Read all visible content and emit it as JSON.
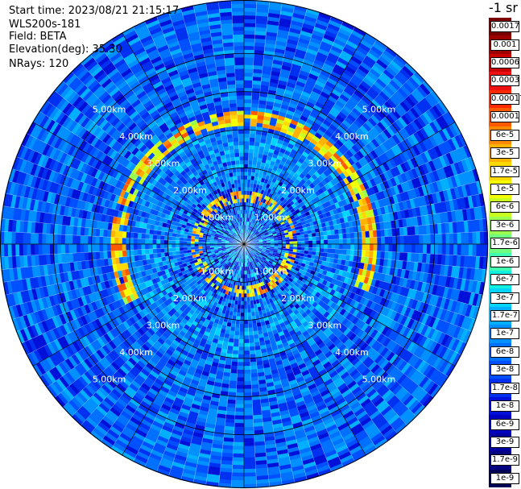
{
  "info": {
    "start_time": "Start time: 2023/08/21 21:15:17",
    "instrument": "WLS200s-181",
    "field": "Field: BETA",
    "elevation": "Elevation(deg): 35.30",
    "nrays": "NRays: 120"
  },
  "colorbar": {
    "unit": "-1 sr",
    "labels": [
      "0.0017",
      "0.001",
      "0.0006",
      "0.0003",
      "0.00017",
      "0.0001",
      "6e-5",
      "3e-5",
      "1.7e-5",
      "1e-5",
      "6e-6",
      "3e-6",
      "1.7e-6",
      "1e-6",
      "6e-7",
      "3e-7",
      "1.7e-7",
      "1e-7",
      "6e-8",
      "3e-8",
      "1.7e-8",
      "1e-8",
      "6e-9",
      "3e-9",
      "1.7e-9",
      "1e-9"
    ],
    "colors": [
      "#7a0000",
      "#9c0000",
      "#c80000",
      "#ee1010",
      "#ff2a00",
      "#ff5a00",
      "#ff8a00",
      "#ffb300",
      "#ffd800",
      "#f4ff00",
      "#c8ff20",
      "#9cff50",
      "#70ff80",
      "#40ffb0",
      "#10f0e0",
      "#00d4ff",
      "#00b0ff",
      "#0090ff",
      "#0070ff",
      "#0050ff",
      "#0030f0",
      "#0010d8",
      "#0000c0",
      "#0000a0",
      "#000080",
      "#000058"
    ]
  },
  "chart_data": {
    "type": "heatmap",
    "subtype": "polar PPI scan",
    "field": "BETA",
    "nrays": 120,
    "ring_labels": [
      "1.00km",
      "2.00km",
      "3.00km",
      "4.00km",
      "5.00km"
    ],
    "ring_distances_km": [
      1,
      2,
      3,
      4,
      5
    ],
    "max_range_km": 6.4,
    "structures": [
      {
        "description": "high-backscatter ring",
        "range_km": [
          3.1,
          3.5
        ],
        "value": "1e-5 to 1.7e-4"
      },
      {
        "description": "inner ring",
        "range_km": [
          1.1,
          1.4
        ],
        "value": "1.7e-5 to 1e-4"
      }
    ],
    "background_value": "1e-7 to 6e-8"
  }
}
